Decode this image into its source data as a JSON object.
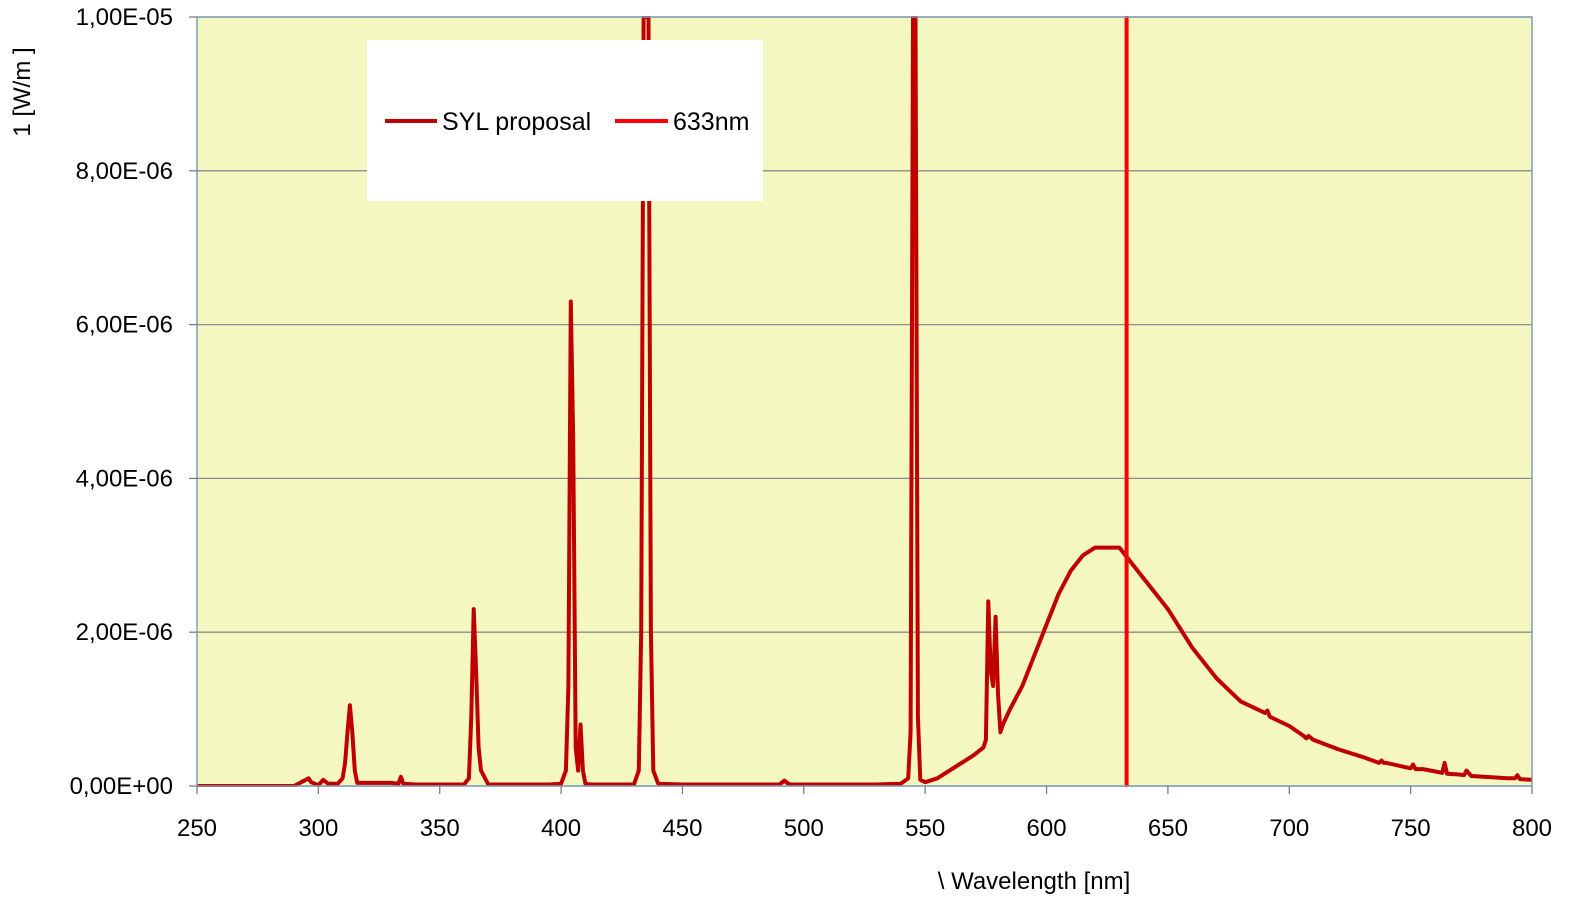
{
  "chart_data": {
    "type": "line",
    "xlabel": "\\ Wavelength [nm]",
    "ylabel": "1    [W/m ]",
    "xlim": [
      250,
      800
    ],
    "ylim": [
      0,
      1e-05
    ],
    "x_ticks": [
      250,
      300,
      350,
      400,
      450,
      500,
      550,
      600,
      650,
      700,
      750,
      800
    ],
    "x_tick_labels": [
      "250",
      "300",
      "350",
      "400",
      "450",
      "500",
      "550",
      "600",
      "650",
      "700",
      "750",
      "800"
    ],
    "y_ticks": [
      0,
      2e-06,
      4e-06,
      6e-06,
      8e-06,
      1e-05
    ],
    "y_tick_labels": [
      "0,00E+00",
      "2,00E-06",
      "4,00E-06",
      "6,00E-06",
      "8,00E-06",
      "1,00E-05"
    ],
    "grid": "horizontal",
    "legend_position": "top-left",
    "plot_background": "#F5F7C0",
    "series": [
      {
        "name": "SYL proposal",
        "color": "#C00000",
        "x": [
          250,
          290,
          296,
          297,
          300,
          302,
          304,
          308,
          310,
          311,
          312,
          313,
          314,
          315,
          316,
          320,
          330,
          333,
          334,
          335,
          340,
          350,
          360,
          362,
          363,
          364,
          365,
          366,
          367,
          370,
          380,
          390,
          395,
          400,
          402,
          403,
          404,
          405,
          406,
          407,
          408,
          409,
          410,
          412,
          420,
          430,
          432,
          433,
          434,
          435,
          436,
          437,
          438,
          440,
          450,
          460,
          470,
          480,
          490,
          492,
          494,
          500,
          510,
          520,
          530,
          540,
          543,
          544,
          545,
          546,
          547,
          548,
          550,
          555,
          560,
          565,
          570,
          574,
          575,
          576,
          577,
          578,
          579,
          580,
          581,
          582,
          585,
          590,
          595,
          600,
          605,
          610,
          615,
          620,
          625,
          630,
          635,
          640,
          645,
          650,
          660,
          670,
          680,
          690,
          691,
          692,
          700,
          706,
          707,
          708,
          710,
          720,
          730,
          737,
          738,
          739,
          740,
          750,
          751,
          752,
          755,
          760,
          763,
          764,
          765,
          770,
          772,
          773,
          775,
          780,
          790,
          793,
          794,
          795,
          800
        ],
        "y": [
          0,
          0,
          1e-07,
          5e-08,
          1e-08,
          8e-08,
          3e-08,
          3e-08,
          1e-07,
          3e-07,
          7e-07,
          1.05e-06,
          7e-07,
          2e-07,
          4e-08,
          4e-08,
          4e-08,
          3e-08,
          1.2e-07,
          3e-08,
          2e-08,
          2e-08,
          2e-08,
          1e-07,
          9e-07,
          2.3e-06,
          1.5e-06,
          5e-07,
          2e-07,
          2e-08,
          2e-08,
          2e-08,
          2e-08,
          3e-08,
          2e-07,
          1.3e-06,
          6.3e-06,
          4.5e-06,
          5e-07,
          2e-07,
          8e-07,
          2e-07,
          3e-08,
          2e-08,
          2e-08,
          2e-08,
          2e-07,
          2e-06,
          1e-05,
          1e-05,
          1e-05,
          2e-06,
          2e-07,
          3e-08,
          2e-08,
          2e-08,
          2e-08,
          2e-08,
          2e-08,
          7e-08,
          2e-08,
          2e-08,
          2e-08,
          2e-08,
          2e-08,
          3e-08,
          1e-07,
          7e-07,
          1e-05,
          1e-05,
          9e-07,
          8e-08,
          5e-08,
          1e-07,
          2e-07,
          3e-07,
          4e-07,
          5e-07,
          6e-07,
          2.4e-06,
          1.5e-06,
          1.3e-06,
          2.2e-06,
          1.2e-06,
          7e-07,
          8e-07,
          1e-06,
          1.3e-06,
          1.7e-06,
          2.1e-06,
          2.5e-06,
          2.8e-06,
          3e-06,
          3.1e-06,
          3.1e-06,
          3.1e-06,
          2.9e-06,
          2.7e-06,
          2.5e-06,
          2.3e-06,
          1.8e-06,
          1.4e-06,
          1.1e-06,
          9.5e-07,
          9.8e-07,
          9e-07,
          7.8e-07,
          6.5e-07,
          6.2e-07,
          6.5e-07,
          6e-07,
          4.8e-07,
          3.8e-07,
          3e-07,
          3.3e-07,
          3e-07,
          3e-07,
          2.3e-07,
          2.8e-07,
          2.2e-07,
          2.2e-07,
          1.9e-07,
          1.7e-07,
          3e-07,
          1.6e-07,
          1.5e-07,
          1.4e-07,
          2e-07,
          1.3e-07,
          1.2e-07,
          1e-07,
          1e-07,
          1.4e-07,
          9e-08,
          8e-08
        ]
      },
      {
        "name": "633nm",
        "color": "#FF0000",
        "x": [
          633,
          633
        ],
        "y": [
          0,
          1e-05
        ]
      }
    ]
  }
}
